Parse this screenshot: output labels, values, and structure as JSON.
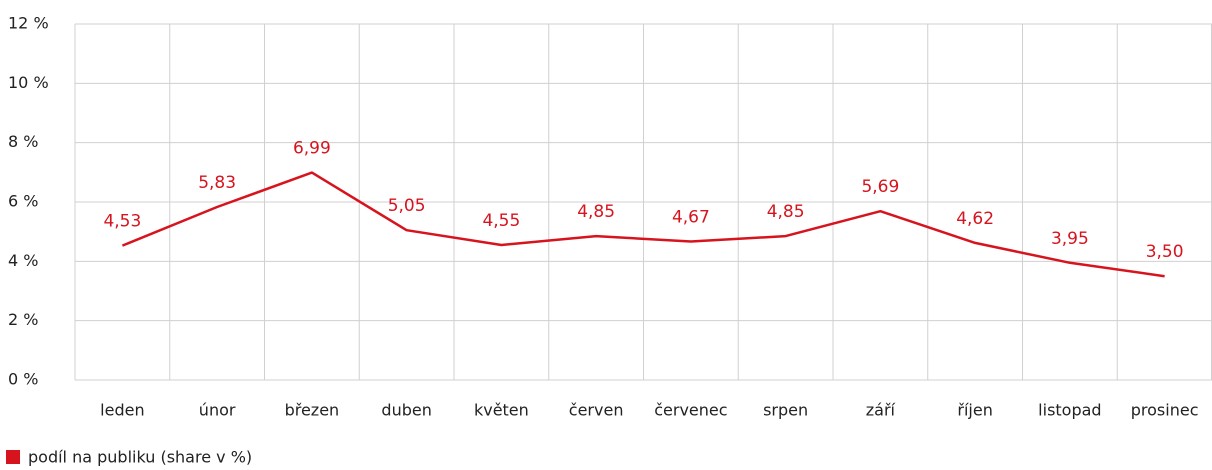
{
  "chart_data": {
    "type": "line",
    "categories": [
      "leden",
      "únor",
      "březen",
      "duben",
      "květen",
      "červen",
      "červenec",
      "srpen",
      "září",
      "říjen",
      "listopad",
      "prosinec"
    ],
    "series": [
      {
        "name": "podíl na publiku (share v %)",
        "color": "#d7141e",
        "values": [
          4.53,
          5.83,
          6.99,
          5.05,
          4.55,
          4.85,
          4.67,
          4.85,
          5.69,
          4.62,
          3.95,
          3.5
        ],
        "value_labels": [
          "4,53",
          "5,83",
          "6,99",
          "5,05",
          "4,55",
          "4,85",
          "4,67",
          "4,85",
          "5,69",
          "4,62",
          "3,95",
          "3,50"
        ]
      }
    ],
    "ylim": [
      0,
      12
    ],
    "yticks": [
      {
        "value": 0,
        "label": "0 %"
      },
      {
        "value": 2,
        "label": "2 %"
      },
      {
        "value": 4,
        "label": "4 %"
      },
      {
        "value": 6,
        "label": "6 %"
      },
      {
        "value": 8,
        "label": "8 %"
      },
      {
        "value": 10,
        "label": "10 %"
      },
      {
        "value": 12,
        "label": "12 %"
      }
    ],
    "grid": true,
    "legend": "bottom-left"
  }
}
